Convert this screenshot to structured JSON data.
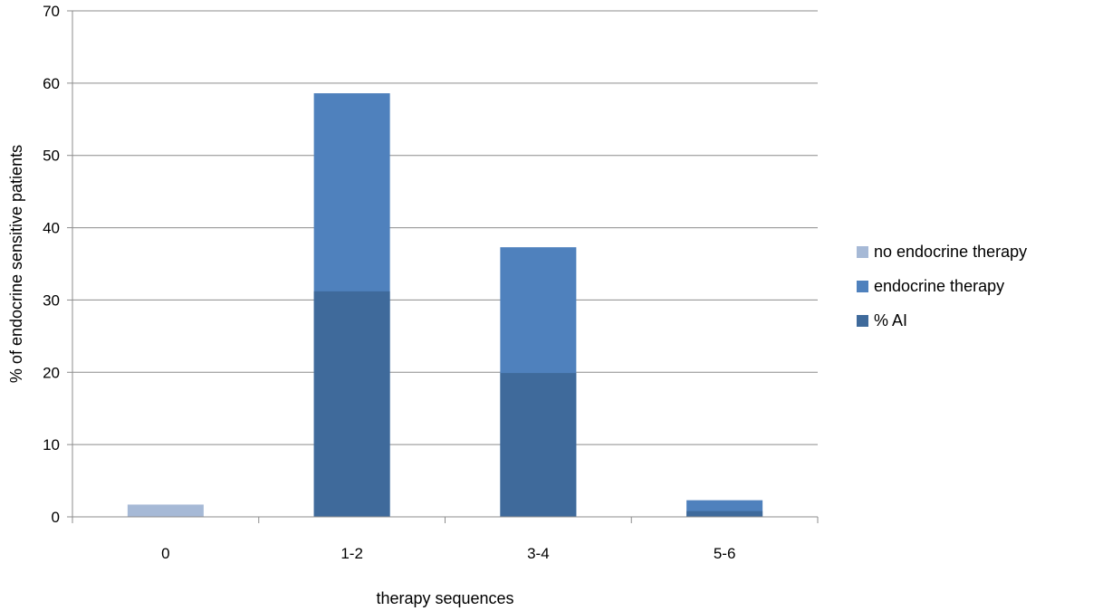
{
  "chart_data": {
    "type": "bar",
    "stacked": false,
    "categories": [
      "0",
      "1-2",
      "3-4",
      "5-6"
    ],
    "series": [
      {
        "name": "no endocrine therapy",
        "values": [
          1.7,
          0,
          0,
          0
        ],
        "color": "#a6b9d6"
      },
      {
        "name": "endocrine therapy",
        "values": [
          0,
          58.6,
          37.3,
          2.3
        ],
        "color": "#4f81bd"
      },
      {
        "name": "% AI",
        "values": [
          0,
          31.2,
          19.9,
          0.8
        ],
        "color": "#3f6a9b"
      }
    ],
    "title": "",
    "xlabel": "therapy sequences",
    "ylabel": "% of endocrine sensitive patients",
    "ylim": [
      0,
      70
    ],
    "yticks": [
      "0",
      "10",
      "20",
      "30",
      "40",
      "50",
      "60",
      "70"
    ],
    "grid": true,
    "legend_position": "right",
    "note": "% AI bars are overlaid on the endocrine therapy bars"
  }
}
